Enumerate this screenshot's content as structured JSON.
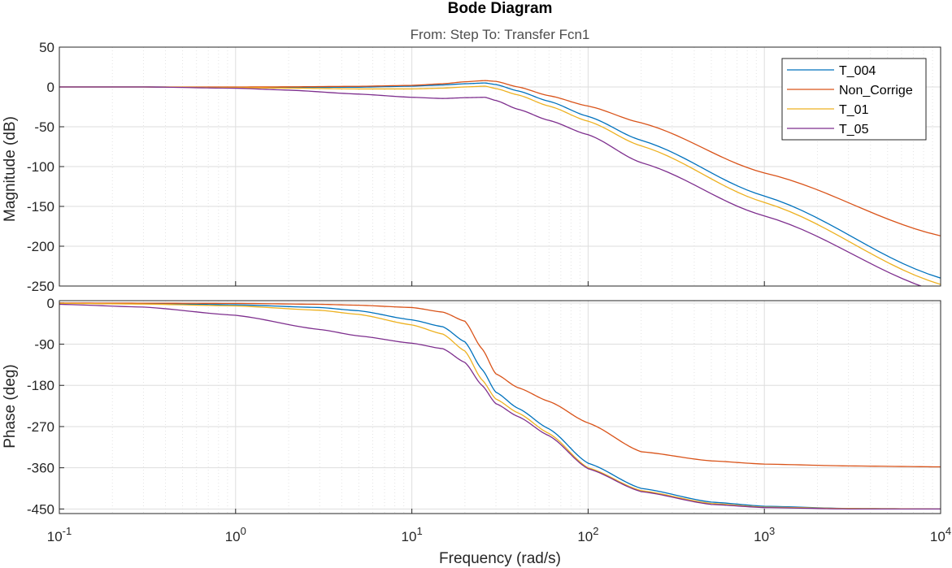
{
  "chart_data": {
    "type": "line",
    "title": "Bode Diagram",
    "subtitle": "From: Step  To: Transfer Fcn1",
    "xlabel": "Frequency  (rad/s)",
    "xscale": "log",
    "xlim": [
      0.1,
      10000
    ],
    "x_ticks": [
      {
        "value": 0.1,
        "base": "10",
        "exp": "-1"
      },
      {
        "value": 1,
        "base": "10",
        "exp": "0"
      },
      {
        "value": 10,
        "base": "10",
        "exp": "1"
      },
      {
        "value": 100,
        "base": "10",
        "exp": "2"
      },
      {
        "value": 1000,
        "base": "10",
        "exp": "3"
      },
      {
        "value": 10000,
        "base": "10",
        "exp": "4"
      }
    ],
    "grid": true,
    "legend_position": "top-right",
    "colors": {
      "T_004": "#0072BD",
      "Non_Corrige": "#D95319",
      "T_01": "#EDB120",
      "T_05": "#7E2F8E"
    },
    "panels": [
      {
        "id": "magnitude",
        "ylabel": "Magnitude (dB)",
        "ylim": [
          -250,
          50
        ],
        "y_ticks": [
          "50",
          "0",
          "-50",
          "-100",
          "-150",
          "-200",
          "-250"
        ],
        "y_tick_values": [
          50,
          0,
          -50,
          -100,
          -150,
          -200,
          -250
        ],
        "x": [
          0.1,
          0.3,
          1,
          2,
          5,
          10,
          15,
          20,
          26,
          30,
          40,
          60,
          100,
          200,
          1000,
          10000
        ],
        "series": [
          {
            "name": "T_004",
            "values": [
              0,
              0,
              -0.4,
              -0.6,
              -0.3,
              1.0,
              2.5,
              4.0,
              5.0,
              3.0,
              -5.0,
              -18.0,
              -37.0,
              -67.0,
              -137.0,
              -240.0
            ]
          },
          {
            "name": "Non_Corrige",
            "values": [
              0,
              0,
              0,
              0.2,
              0.8,
              2.0,
              4.0,
              6.5,
              8.0,
              7.0,
              0.0,
              -11.0,
              -24.0,
              -45.0,
              -108.0,
              -187.0
            ]
          },
          {
            "name": "T_01",
            "values": [
              0,
              0,
              -0.8,
              -1.5,
              -2.5,
              -2.5,
              -1.5,
              0.0,
              1.0,
              -2.0,
              -10.0,
              -24.0,
              -43.0,
              -74.0,
              -145.0,
              -248.0
            ]
          },
          {
            "name": "T_05",
            "values": [
              0,
              0,
              -1.6,
              -4.0,
              -9.0,
              -13.0,
              -14.5,
              -13.5,
              -13.0,
              -17.0,
              -28.0,
              -42.0,
              -60.0,
              -95.0,
              -162.0,
              -258.0
            ]
          }
        ]
      },
      {
        "id": "phase",
        "ylabel": "Phase (deg)",
        "ylim": [
          -460,
          5
        ],
        "y_ticks": [
          "0",
          "-90",
          "-180",
          "-270",
          "-360",
          "-450"
        ],
        "y_tick_values": [
          0,
          -90,
          -180,
          -270,
          -360,
          -450
        ],
        "x": [
          0.1,
          0.3,
          1,
          3,
          5,
          10,
          15,
          20,
          25,
          30,
          40,
          60,
          100,
          200,
          500,
          1000,
          3000,
          10000
        ],
        "series": [
          {
            "name": "T_004",
            "values": [
              -0.5,
              -1.5,
              -4.0,
              -10.0,
              -17.0,
              -37.0,
              -52.0,
              -85.0,
              -145.0,
              -195.0,
              -230.0,
              -275.0,
              -350.0,
              -405.0,
              -435.0,
              -444.0,
              -449.0,
              -450.0
            ]
          },
          {
            "name": "Non_Corrige",
            "values": [
              -0.1,
              -0.5,
              -1.0,
              -3.0,
              -5.0,
              -10.0,
              -20.0,
              -40.0,
              -100.0,
              -155.0,
              -185.0,
              -215.0,
              -262.0,
              -325.0,
              -345.0,
              -352.0,
              -356.0,
              -358.0
            ]
          },
          {
            "name": "T_01",
            "values": [
              -1.0,
              -2.5,
              -6.5,
              -16.0,
              -25.0,
              -48.0,
              -68.0,
              -105.0,
              -168.0,
              -210.0,
              -240.0,
              -285.0,
              -360.0,
              -410.0,
              -438.0,
              -446.0,
              -449.0,
              -450.0
            ]
          },
          {
            "name": "T_05",
            "values": [
              -3.0,
              -9.0,
              -27.0,
              -58.0,
              -72.0,
              -88.0,
              -100.0,
              -130.0,
              -180.0,
              -220.0,
              -248.0,
              -290.0,
              -362.0,
              -412.0,
              -440.0,
              -447.0,
              -450.0,
              -450.0
            ]
          }
        ]
      }
    ]
  }
}
